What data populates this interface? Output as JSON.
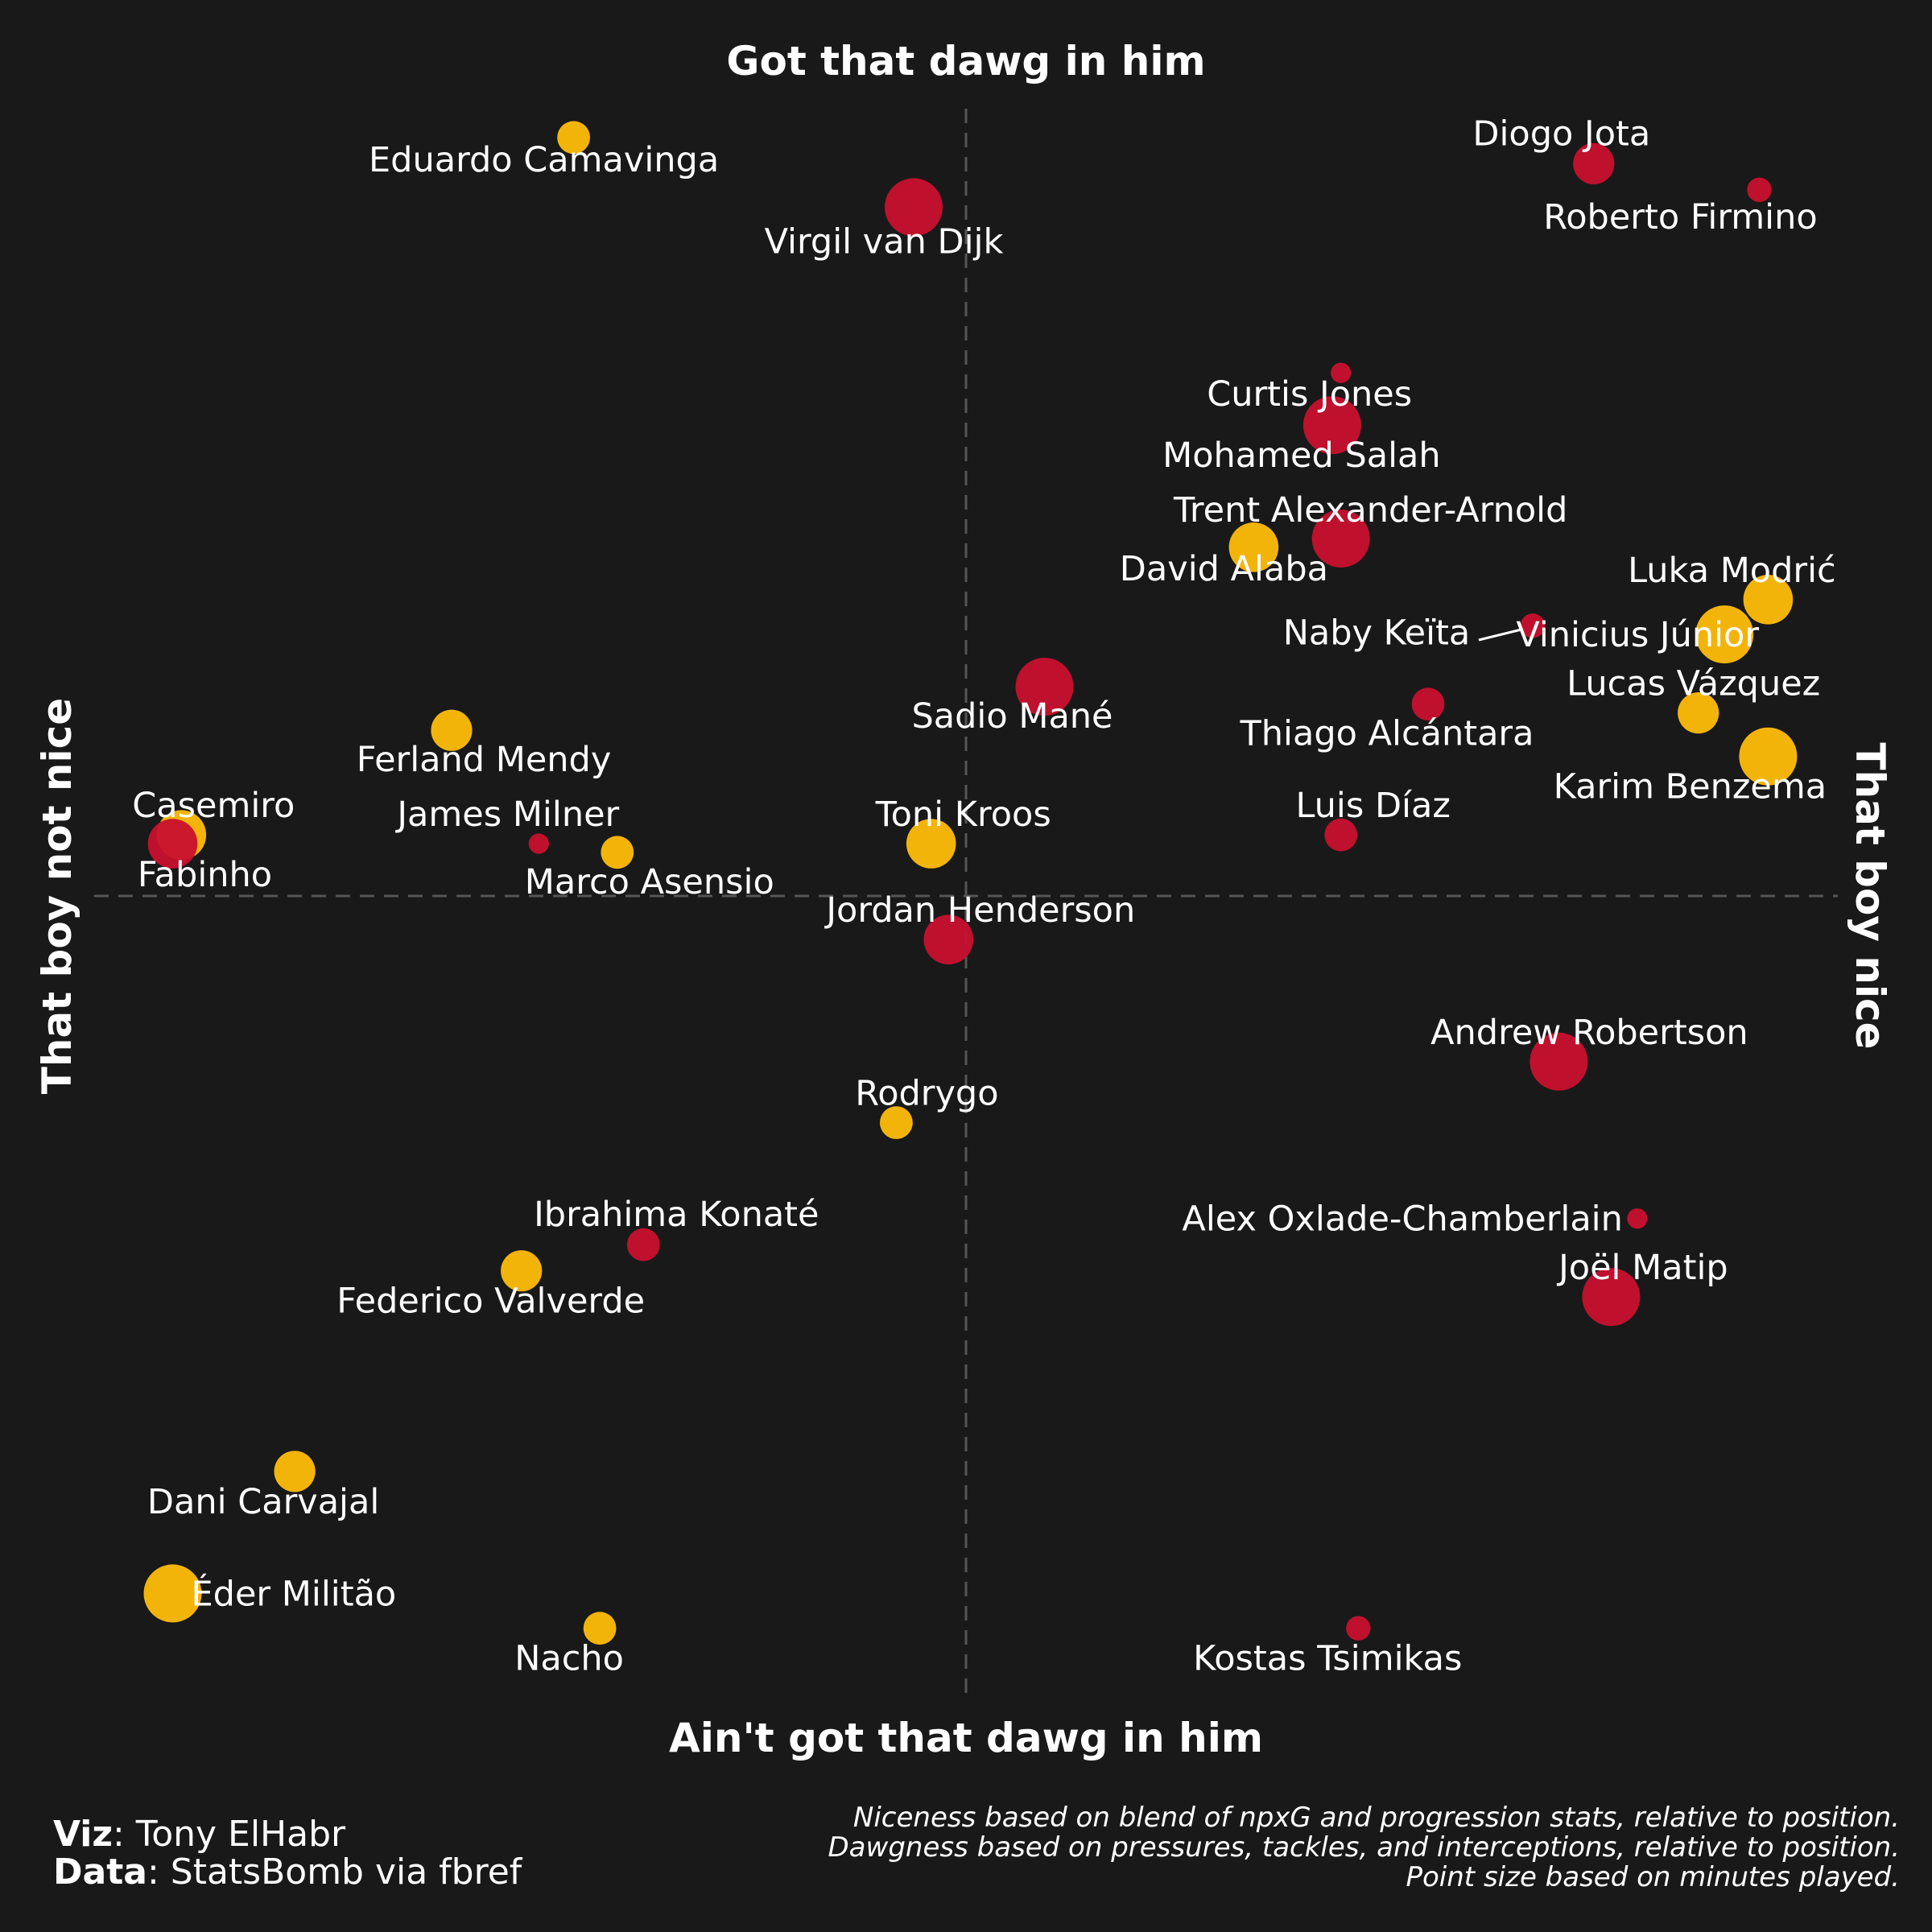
{
  "chart_data": {
    "type": "scatter",
    "title": "",
    "quadrant_labels": {
      "top": "Got that dawg in him",
      "bottom": "Ain't got that dawg in him",
      "left": "That boy not nice",
      "right": "That boy nice"
    },
    "reference_lines": {
      "x": 0,
      "y": 0,
      "style": "dashed"
    },
    "grid": false,
    "legend": "none",
    "size_encoding": "minutes played",
    "colors": {
      "Real Madrid": "#FFBD0A",
      "Liverpool": "#C8102E",
      "background": "#191919"
    },
    "series": [
      {
        "color": "#FFBD0A",
        "points": [
          {
            "label": "Eduardo Camavinga",
            "x": -0.45,
            "y": 0.87,
            "size": 2
          },
          {
            "label": "David Alaba",
            "x": 0.33,
            "y": 0.4,
            "size": 4
          },
          {
            "label": "Luka Modrić",
            "x": 0.92,
            "y": 0.34,
            "size": 4
          },
          {
            "label": "Vinicius Júnior",
            "x": 0.87,
            "y": 0.3,
            "size": 5
          },
          {
            "label": "Lucas Vázquez",
            "x": 0.84,
            "y": 0.21,
            "size": 3
          },
          {
            "label": "Karim Benzema",
            "x": 0.92,
            "y": 0.16,
            "size": 5
          },
          {
            "label": "Ferland Mendy",
            "x": -0.59,
            "y": 0.19,
            "size": 3
          },
          {
            "label": "Casemiro",
            "x": -0.9,
            "y": 0.07,
            "size": 4
          },
          {
            "label": "Marco Asensio",
            "x": -0.4,
            "y": 0.05,
            "size": 2
          },
          {
            "label": "Toni Kroos",
            "x": -0.04,
            "y": 0.06,
            "size": 4
          },
          {
            "label": "Rodrygo",
            "x": -0.08,
            "y": -0.26,
            "size": 2
          },
          {
            "label": "Federico Valverde",
            "x": -0.51,
            "y": -0.43,
            "size": 3
          },
          {
            "label": "Dani Carvajal",
            "x": -0.77,
            "y": -0.66,
            "size": 3
          },
          {
            "label": "Éder Militão",
            "x": -0.91,
            "y": -0.8,
            "size": 5
          },
          {
            "label": "Nacho",
            "x": -0.42,
            "y": -0.84,
            "size": 2
          }
        ]
      },
      {
        "color": "#C8102E",
        "points": [
          {
            "label": "Diogo Jota",
            "x": 0.72,
            "y": 0.84,
            "size": 3
          },
          {
            "label": "Roberto Firmino",
            "x": 0.91,
            "y": 0.81,
            "size": 1
          },
          {
            "label": "Virgil van Dijk",
            "x": -0.06,
            "y": 0.79,
            "size": 5
          },
          {
            "label": "Curtis Jones",
            "x": 0.43,
            "y": 0.6,
            "size": 0.5
          },
          {
            "label": "Mohamed Salah",
            "x": 0.42,
            "y": 0.54,
            "size": 5
          },
          {
            "label": "Trent Alexander-Arnold",
            "x": 0.43,
            "y": 0.41,
            "size": 5
          },
          {
            "label": "Naby Keïta",
            "x": 0.65,
            "y": 0.31,
            "size": 1
          },
          {
            "label": "Sadio Mané",
            "x": 0.09,
            "y": 0.24,
            "size": 5
          },
          {
            "label": "Thiago Alcántara",
            "x": 0.53,
            "y": 0.22,
            "size": 2
          },
          {
            "label": "Luis Díaz",
            "x": 0.43,
            "y": 0.07,
            "size": 2
          },
          {
            "label": "Fabinho",
            "x": -0.91,
            "y": 0.06,
            "size": 4
          },
          {
            "label": "James Milner",
            "x": -0.49,
            "y": 0.06,
            "size": 0.5
          },
          {
            "label": "Jordan Henderson",
            "x": -0.02,
            "y": -0.05,
            "size": 4
          },
          {
            "label": "Andrew Robertson",
            "x": 0.68,
            "y": -0.19,
            "size": 5
          },
          {
            "label": "Ibrahima Konaté",
            "x": -0.37,
            "y": -0.4,
            "size": 2
          },
          {
            "label": "Alex Oxlade-Chamberlain",
            "x": 0.77,
            "y": -0.37,
            "size": 0.5
          },
          {
            "label": "Joël Matip",
            "x": 0.74,
            "y": -0.46,
            "size": 5
          },
          {
            "label": "Kostas Tsimikas",
            "x": 0.45,
            "y": -0.84,
            "size": 1
          }
        ]
      }
    ]
  },
  "credits": {
    "viz_label": "Viz",
    "viz_value": ": Tony ElHabr",
    "data_label": "Data",
    "data_value": ": StatsBomb via fbref"
  },
  "notes": [
    "Niceness based on blend of npxG and progression stats, relative to position.",
    "Dawgness based on pressures, tackles, and interceptions, relative to position.",
    "Point size based on minutes played."
  ]
}
